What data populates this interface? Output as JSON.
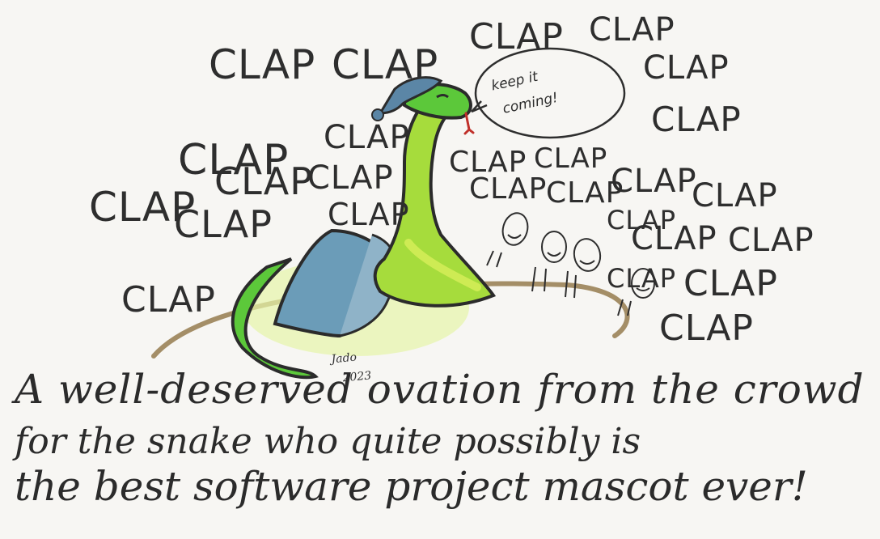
{
  "clap_word": "CLAP",
  "clap_count": 26,
  "speech_bubble": {
    "line1": "keep it",
    "line2": "coming!"
  },
  "signature": {
    "name": "Jado",
    "year": "2023"
  },
  "caption": {
    "line1": "A well-deserved ovation from the crowd",
    "line2": "for the snake who quite possibly is",
    "line3": "the best software project mascot ever!"
  },
  "colors": {
    "background": "#f7f6f3",
    "ink": "#2e2e2e",
    "snake_green": "#5cc83a",
    "snake_light": "#d8ef5a",
    "hat_blue": "#5b86a6",
    "blanket_blue": "#6b9cb8",
    "ground_brown": "#a48e67"
  }
}
